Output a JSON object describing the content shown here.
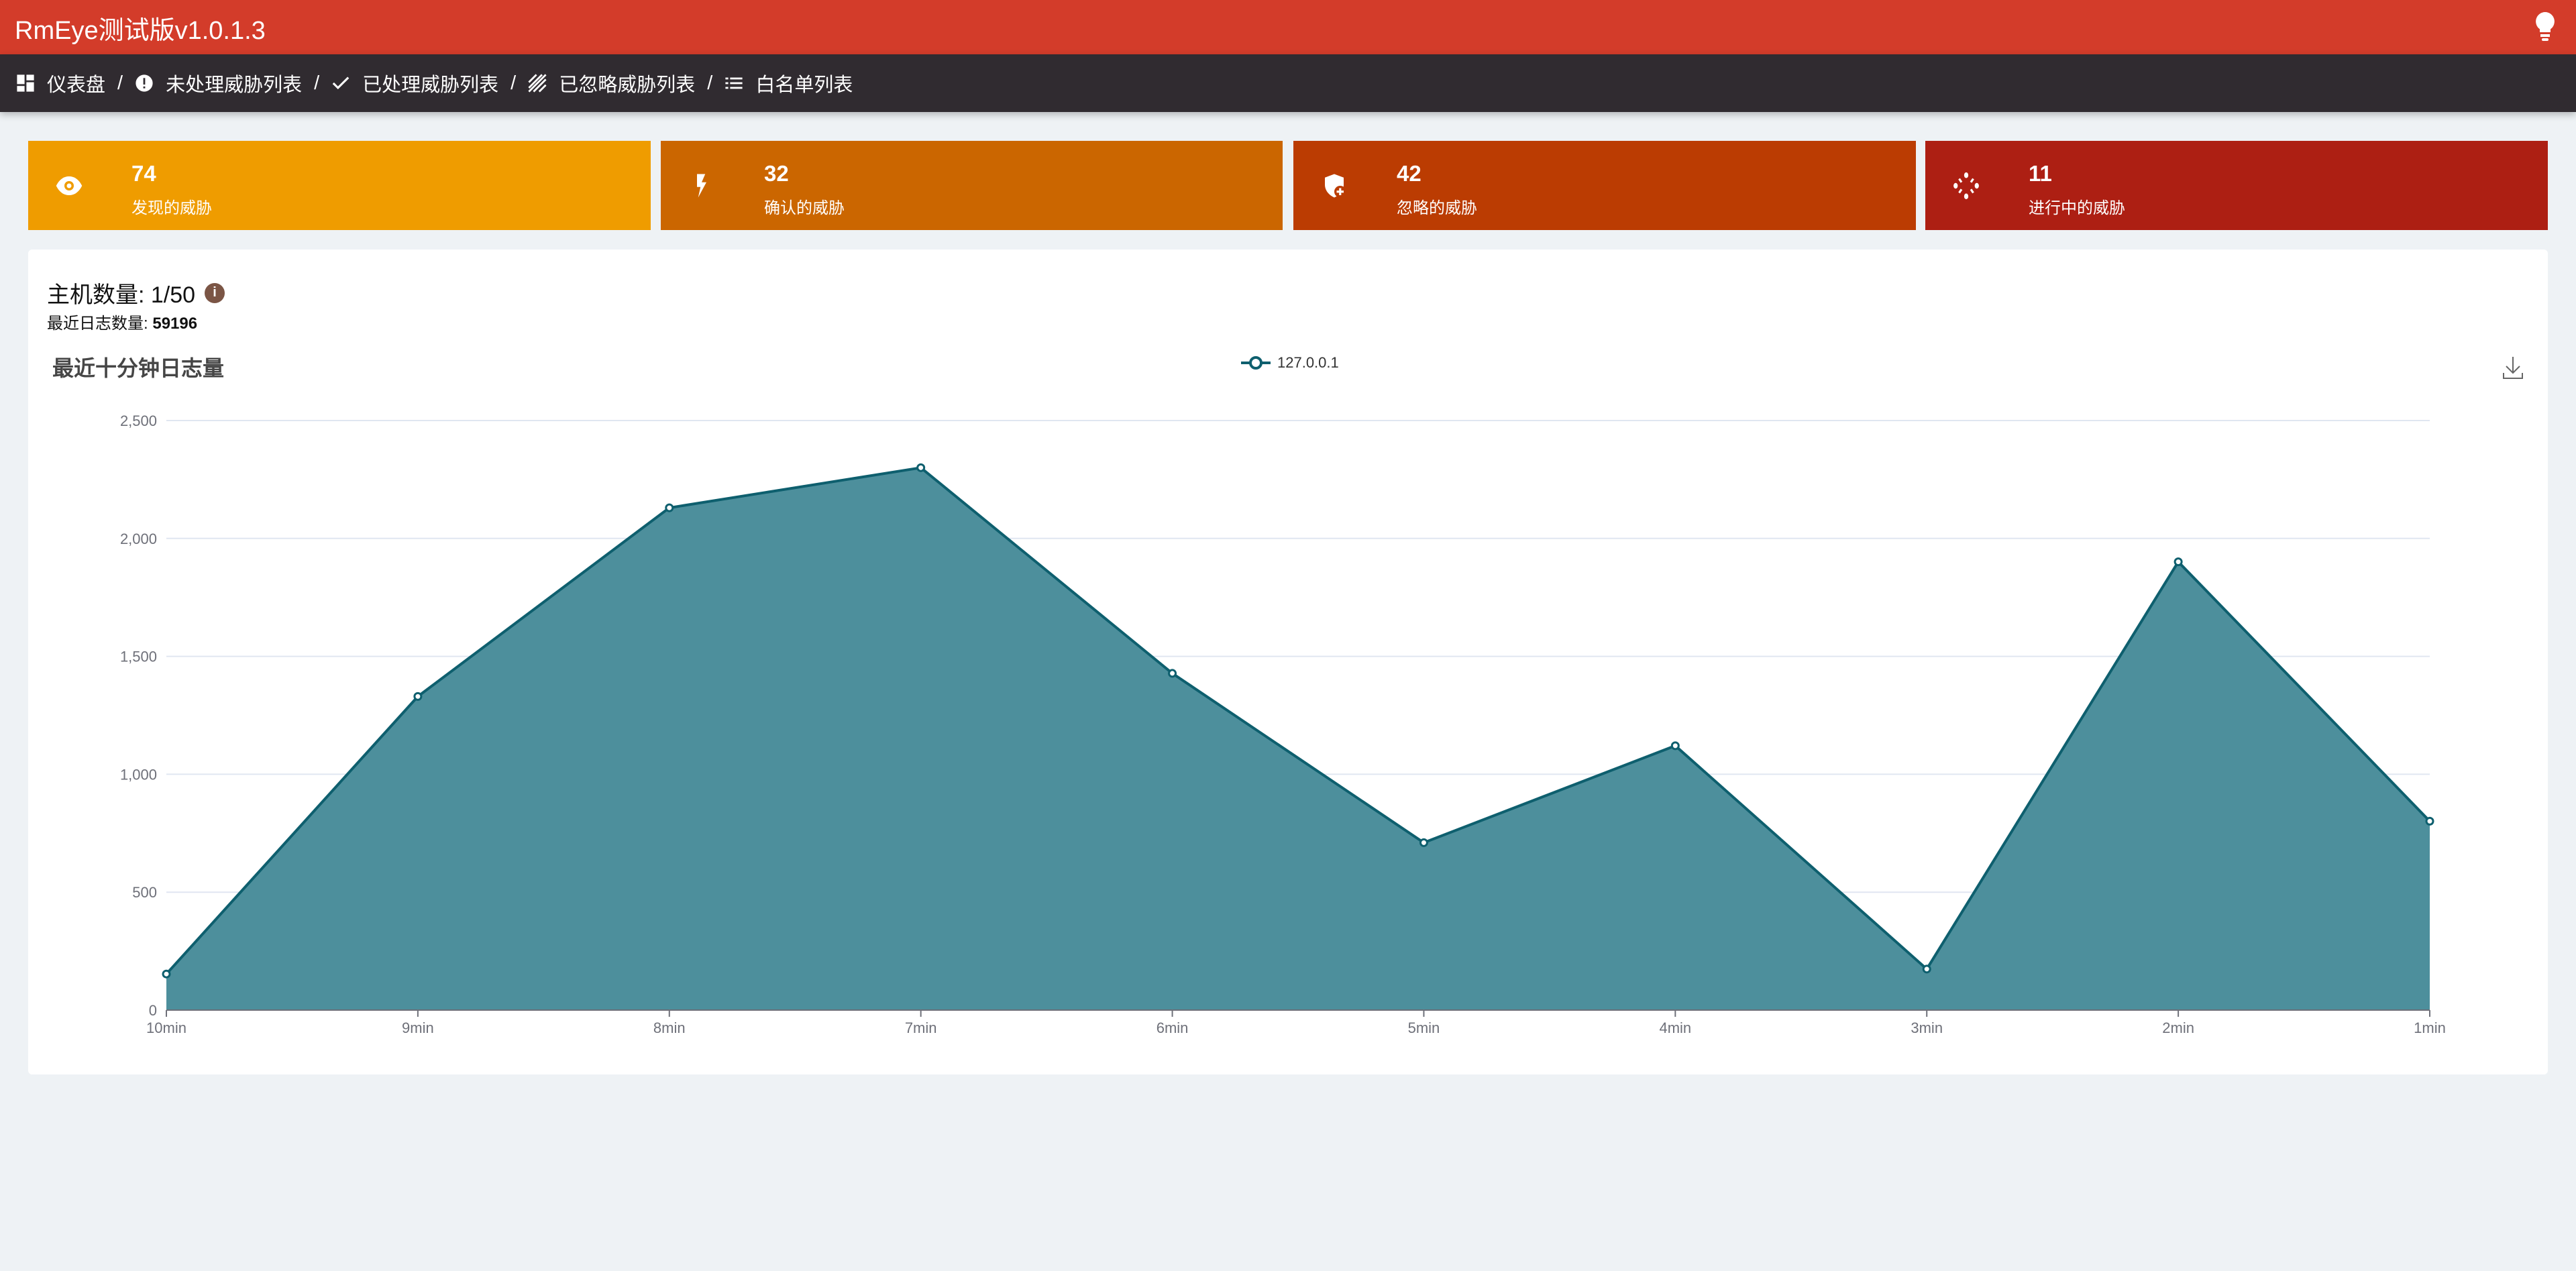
{
  "header": {
    "title": "RmEye测试版v1.0.1.3",
    "icon": "lightbulb-icon"
  },
  "nav": [
    {
      "label": "仪表盘",
      "icon": "dashboard-icon"
    },
    {
      "label": "未处理威胁列表",
      "icon": "alert-circle-icon"
    },
    {
      "label": "已处理威胁列表",
      "icon": "check-icon"
    },
    {
      "label": "已忽略威胁列表",
      "icon": "hatch-icon"
    },
    {
      "label": "白名单列表",
      "icon": "list-icon"
    }
  ],
  "nav_separator": "/",
  "cards": [
    {
      "value": "74",
      "label": "发现的威胁",
      "icon": "eye-icon",
      "color": "#ef9c00"
    },
    {
      "value": "32",
      "label": "确认的威胁",
      "icon": "bolt-icon",
      "color": "#cb6600"
    },
    {
      "value": "42",
      "label": "忽略的威胁",
      "icon": "shield-plus-icon",
      "color": "#bb3c02"
    },
    {
      "value": "11",
      "label": "进行中的威胁",
      "icon": "spinner-icon",
      "color": "#ad1f13"
    }
  ],
  "summary": {
    "hosts_label": "主机数量: 1/50",
    "info_icon": "i",
    "log_label": "最近日志数量:",
    "log_value": "59196"
  },
  "chart_data": {
    "type": "area",
    "title": "最近十分钟日志量",
    "categories": [
      "10min",
      "9min",
      "8min",
      "7min",
      "6min",
      "5min",
      "4min",
      "3min",
      "2min",
      "1min"
    ],
    "series": [
      {
        "name": "127.0.0.1",
        "values": [
          153,
          1330,
          2130,
          2300,
          1428,
          710,
          1121,
          174,
          1901,
          801
        ],
        "color": "#0e5f6e",
        "fill": "#4d8f9c"
      }
    ],
    "ylim": [
      0,
      2500
    ],
    "yticks": [
      "0",
      "500",
      "1,000",
      "1,500",
      "2,000",
      "2,500"
    ],
    "grid": true,
    "legend": "top-center"
  }
}
